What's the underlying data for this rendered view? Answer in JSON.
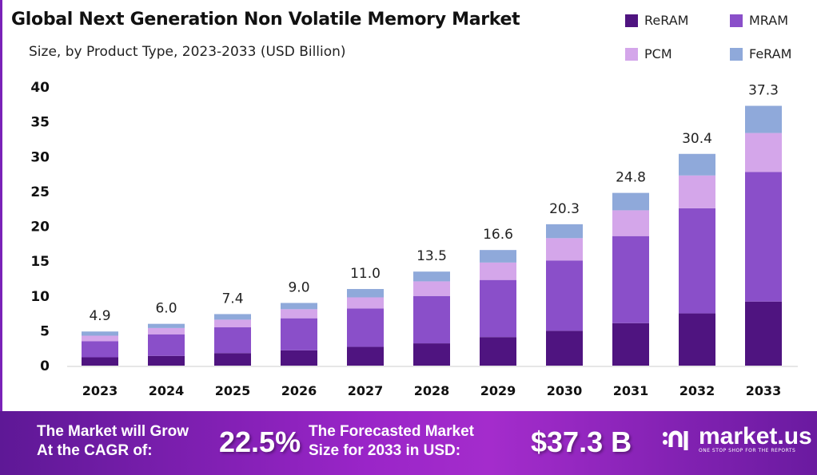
{
  "chart_data": {
    "type": "bar",
    "stacked": true,
    "title": "Global Next Generation Non Volatile Memory Market",
    "subtitle": "Size, by Product Type, 2023-2033 (USD Billion)",
    "xlabel": "",
    "ylabel": "",
    "ylim": [
      0,
      40
    ],
    "yticks": [
      "0",
      "5",
      "10",
      "15",
      "20",
      "25",
      "30",
      "35",
      "40"
    ],
    "grid": false,
    "legend_position": "top-right",
    "categories": [
      "2023",
      "2024",
      "2025",
      "2026",
      "2027",
      "2028",
      "2029",
      "2030",
      "2031",
      "2032",
      "2033"
    ],
    "totals": [
      "4.9",
      "6.0",
      "7.4",
      "9.0",
      "11.0",
      "13.5",
      "16.6",
      "20.3",
      "24.8",
      "30.4",
      "37.3"
    ],
    "series": [
      {
        "name": "ReRAM",
        "color": "#4f1480",
        "values": [
          1.2,
          1.4,
          1.8,
          2.2,
          2.7,
          3.2,
          4.1,
          5.0,
          6.1,
          7.5,
          9.2
        ]
      },
      {
        "name": "MRAM",
        "color": "#8a4fc9",
        "values": [
          2.3,
          3.1,
          3.7,
          4.6,
          5.5,
          6.8,
          8.2,
          10.1,
          12.5,
          15.1,
          18.6
        ]
      },
      {
        "name": "PCM",
        "color": "#d4a6ea",
        "values": [
          0.8,
          0.9,
          1.1,
          1.3,
          1.6,
          2.1,
          2.5,
          3.2,
          3.7,
          4.7,
          5.6
        ]
      },
      {
        "name": "FeRAM",
        "color": "#8fa9da",
        "values": [
          0.6,
          0.6,
          0.8,
          0.9,
          1.2,
          1.4,
          1.8,
          2.0,
          2.5,
          3.1,
          3.9
        ]
      }
    ]
  },
  "footer": {
    "cagr_text_1": "The Market will Grow",
    "cagr_text_2": "At the CAGR of:",
    "cagr_value": "22.5%",
    "forecast_text_1": "The Forecasted Market",
    "forecast_text_2": "Size for 2033 in USD:",
    "forecast_value": "$37.3 B",
    "brand": "market.us",
    "brand_tagline": "ONE STOP SHOP FOR THE REPORTS",
    "brand_icon": "market-us-logo-icon"
  }
}
